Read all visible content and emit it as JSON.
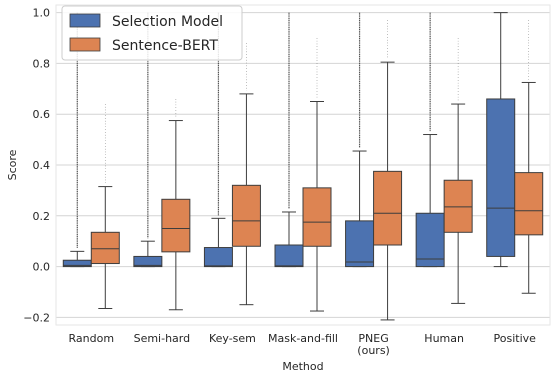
{
  "chart_data": {
    "type": "box",
    "xlabel": "Method",
    "ylabel": "Score",
    "ylim": [
      -0.23,
      1.03
    ],
    "yticks": [
      -0.2,
      0.0,
      0.2,
      0.4,
      0.6,
      0.8,
      1.0
    ],
    "ytick_labels": [
      "−0.2",
      "0.0",
      "0.2",
      "0.4",
      "0.6",
      "0.8",
      "1.0"
    ],
    "grid": true,
    "legend_position": "top-left",
    "categories": [
      {
        "label": [
          "Random"
        ]
      },
      {
        "label": [
          "Semi-hard"
        ]
      },
      {
        "label": [
          "Key-sem"
        ]
      },
      {
        "label": [
          "Mask-and-fill"
        ]
      },
      {
        "label": [
          "PNEG",
          "(ours)"
        ]
      },
      {
        "label": [
          "Human"
        ]
      },
      {
        "label": [
          "Positive"
        ]
      }
    ],
    "series": [
      {
        "name": "Selection Model",
        "color": "#4c72b0",
        "boxes": [
          {
            "whislo": 0.0,
            "q1": 0.0,
            "median": 0.005,
            "q3": 0.025,
            "whishi": 0.06,
            "outlier_max": 1.0
          },
          {
            "whislo": 0.0,
            "q1": 0.0,
            "median": 0.005,
            "q3": 0.04,
            "whishi": 0.1,
            "outlier_max": 1.0
          },
          {
            "whislo": 0.0,
            "q1": 0.0,
            "median": 0.003,
            "q3": 0.075,
            "whishi": 0.19,
            "outlier_max": 1.0
          },
          {
            "whislo": 0.0,
            "q1": 0.0,
            "median": 0.003,
            "q3": 0.085,
            "whishi": 0.215,
            "outlier_max": 1.0
          },
          {
            "whislo": 0.0,
            "q1": 0.0,
            "median": 0.018,
            "q3": 0.18,
            "whishi": 0.455,
            "outlier_max": 1.0
          },
          {
            "whislo": 0.0,
            "q1": 0.0,
            "median": 0.03,
            "q3": 0.21,
            "whishi": 0.52,
            "outlier_max": 1.0
          },
          {
            "whislo": 0.0,
            "q1": 0.04,
            "median": 0.23,
            "q3": 0.66,
            "whishi": 1.0,
            "outlier_max": null
          }
        ]
      },
      {
        "name": "Sentence-BERT",
        "color": "#dd8452",
        "boxes": [
          {
            "whislo": -0.165,
            "q1": 0.012,
            "median": 0.07,
            "q3": 0.135,
            "whishi": 0.315,
            "outlier_max": 0.64
          },
          {
            "whislo": -0.17,
            "q1": 0.058,
            "median": 0.15,
            "q3": 0.265,
            "whishi": 0.575,
            "outlier_max": 0.66
          },
          {
            "whislo": -0.15,
            "q1": 0.08,
            "median": 0.18,
            "q3": 0.32,
            "whishi": 0.68,
            "outlier_max": 0.88
          },
          {
            "whislo": -0.175,
            "q1": 0.08,
            "median": 0.175,
            "q3": 0.31,
            "whishi": 0.65,
            "outlier_max": 0.9
          },
          {
            "whislo": -0.21,
            "q1": 0.085,
            "median": 0.21,
            "q3": 0.375,
            "whishi": 0.805,
            "outlier_max": 0.97
          },
          {
            "whislo": -0.145,
            "q1": 0.135,
            "median": 0.235,
            "q3": 0.34,
            "whishi": 0.64,
            "outlier_max": 0.9
          },
          {
            "whislo": -0.105,
            "q1": 0.125,
            "median": 0.22,
            "q3": 0.37,
            "whishi": 0.725,
            "outlier_max": 0.97
          }
        ]
      }
    ]
  }
}
